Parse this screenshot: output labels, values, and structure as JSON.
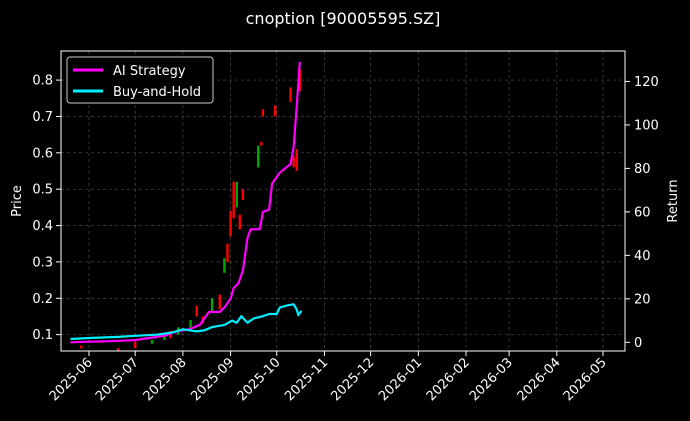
{
  "chart_data": {
    "type": "line",
    "title": "cnoption [90005595.SZ]",
    "xlabel": "",
    "ylabel": "Price",
    "ylabel_right": "Return",
    "grid": true,
    "legend_position": "top-left",
    "background": "#000000",
    "x_ticks": [
      "2025-06",
      "2025-07",
      "2025-08",
      "2025-09",
      "2025-10",
      "2025-11",
      "2025-12",
      "2026-01",
      "2026-02",
      "2026-03",
      "2026-04",
      "2026-05"
    ],
    "y_ticks_left": [
      "0.1",
      "0.2",
      "0.3",
      "0.4",
      "0.5",
      "0.6",
      "0.7",
      "0.8"
    ],
    "y_ticks_right": [
      "0",
      "20",
      "40",
      "60",
      "80",
      "100",
      "120"
    ],
    "ylim_left": [
      0.055,
      0.88
    ],
    "ylim_right": [
      -4,
      134
    ],
    "series": [
      {
        "name": "AI Strategy",
        "axis": "right",
        "color": "#ff00ff",
        "points": [
          [
            "2025-05-20",
            0
          ],
          [
            "2025-06-01",
            0.3
          ],
          [
            "2025-06-15",
            0.5
          ],
          [
            "2025-07-01",
            1
          ],
          [
            "2025-07-10",
            2
          ],
          [
            "2025-07-20",
            3
          ],
          [
            "2025-07-28",
            5
          ],
          [
            "2025-08-05",
            6
          ],
          [
            "2025-08-12",
            8
          ],
          [
            "2025-08-15",
            11
          ],
          [
            "2025-08-18",
            14
          ],
          [
            "2025-08-25",
            14
          ],
          [
            "2025-08-28",
            16
          ],
          [
            "2025-09-01",
            20
          ],
          [
            "2025-09-03",
            25
          ],
          [
            "2025-09-06",
            27
          ],
          [
            "2025-09-09",
            33
          ],
          [
            "2025-09-12",
            48
          ],
          [
            "2025-09-14",
            52
          ],
          [
            "2025-09-20",
            52
          ],
          [
            "2025-09-22",
            60
          ],
          [
            "2025-09-26",
            61
          ],
          [
            "2025-09-28",
            73
          ],
          [
            "2025-10-03",
            78
          ],
          [
            "2025-10-10",
            82
          ],
          [
            "2025-10-12",
            90
          ],
          [
            "2025-10-14",
            109
          ],
          [
            "2025-10-16",
            129
          ]
        ]
      },
      {
        "name": "Buy-and-Hold",
        "axis": "right",
        "color": "#00eeff",
        "points": [
          [
            "2025-05-20",
            1.5
          ],
          [
            "2025-06-01",
            2
          ],
          [
            "2025-06-20",
            2.5
          ],
          [
            "2025-07-01",
            3
          ],
          [
            "2025-07-15",
            3.5
          ],
          [
            "2025-07-25",
            4.5
          ],
          [
            "2025-08-01",
            6
          ],
          [
            "2025-08-10",
            5
          ],
          [
            "2025-08-15",
            5.5
          ],
          [
            "2025-08-20",
            7
          ],
          [
            "2025-08-28",
            8
          ],
          [
            "2025-09-02",
            10
          ],
          [
            "2025-09-05",
            9
          ],
          [
            "2025-09-08",
            12
          ],
          [
            "2025-09-12",
            9
          ],
          [
            "2025-09-16",
            11
          ],
          [
            "2025-09-22",
            12
          ],
          [
            "2025-09-26",
            13
          ],
          [
            "2025-10-01",
            13
          ],
          [
            "2025-10-03",
            16
          ],
          [
            "2025-10-08",
            17
          ],
          [
            "2025-10-12",
            17.5
          ],
          [
            "2025-10-14",
            15
          ],
          [
            "2025-10-15",
            12.5
          ],
          [
            "2025-10-17",
            14.5
          ]
        ]
      }
    ],
    "candlesticks": {
      "axis": "left",
      "up_color": "#00aa00",
      "down_color": "#ff0000",
      "bars": [
        [
          "2025-05-27",
          0.062,
          0.07,
          "down"
        ],
        [
          "2025-06-20",
          0.055,
          0.063,
          "down"
        ],
        [
          "2025-07-01",
          0.063,
          0.08,
          "down"
        ],
        [
          "2025-07-12",
          0.075,
          0.085,
          "up"
        ],
        [
          "2025-07-20",
          0.085,
          0.1,
          "up"
        ],
        [
          "2025-07-24",
          0.09,
          0.11,
          "down"
        ],
        [
          "2025-07-29",
          0.1,
          0.12,
          "up"
        ],
        [
          "2025-08-06",
          0.12,
          0.14,
          "up"
        ],
        [
          "2025-08-10",
          0.15,
          0.18,
          "down"
        ],
        [
          "2025-08-14",
          0.13,
          0.15,
          "down"
        ],
        [
          "2025-08-20",
          0.16,
          0.2,
          "up"
        ],
        [
          "2025-08-25",
          0.17,
          0.21,
          "down"
        ],
        [
          "2025-08-28",
          0.27,
          0.31,
          "up"
        ],
        [
          "2025-08-30",
          0.3,
          0.35,
          "down"
        ],
        [
          "2025-09-01",
          0.37,
          0.44,
          "down"
        ],
        [
          "2025-09-03",
          0.42,
          0.52,
          "down"
        ],
        [
          "2025-09-05",
          0.45,
          0.52,
          "up"
        ],
        [
          "2025-09-07",
          0.39,
          0.43,
          "down"
        ],
        [
          "2025-09-09",
          0.47,
          0.5,
          "down"
        ],
        [
          "2025-09-19",
          0.56,
          0.62,
          "up"
        ],
        [
          "2025-09-21",
          0.62,
          0.63,
          "down"
        ],
        [
          "2025-10-10",
          0.74,
          0.78,
          "down"
        ],
        [
          "2025-10-12",
          0.56,
          0.59,
          "down"
        ],
        [
          "2025-10-14",
          0.55,
          0.61,
          "down"
        ],
        [
          "2025-10-16",
          0.77,
          0.83,
          "down"
        ],
        [
          "2025-09-22",
          0.7,
          0.72,
          "down"
        ],
        [
          "2025-09-30",
          0.7,
          0.73,
          "down"
        ]
      ]
    }
  }
}
